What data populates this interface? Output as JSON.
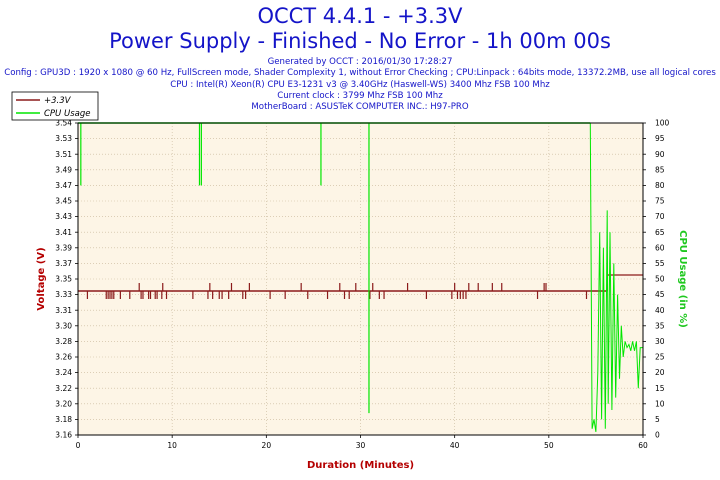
{
  "chart_data": {
    "type": "line",
    "title": "OCCT 4.4.1 - +3.3V",
    "subtitle": "Power Supply - Finished - No Error - 1h 00m 00s",
    "info_lines": [
      "Generated by OCCT : 2016/01/30 17:28:27",
      "Config : GPU3D : 1920 x 1080 @ 60 Hz, FullScreen mode, Shader Complexity 1, without Error Checking ; CPU:Linpack : 64bits mode, 13372.2MB, use all logical cores",
      "CPU : Intel(R) Xeon(R) CPU E3-1231 v3 @ 3.40GHz (Haswell-WS) 3400 Mhz FSB 100 Mhz",
      "Current clock : 3799 Mhz FSB 100 Mhz",
      "MotherBoard : ASUSTeK COMPUTER INC.: H97-PRO"
    ],
    "xlabel": "Duration (Minutes)",
    "ylabel": "Voltage (V)",
    "y2label": "CPU Usage (in %)",
    "xlim": [
      0,
      60
    ],
    "ylim": [
      3.16,
      3.55
    ],
    "y2lim": [
      0,
      100
    ],
    "xticks": [
      "0",
      "10",
      "20",
      "30",
      "40",
      "50",
      "60"
    ],
    "yticks": [
      "3.16",
      "3.18",
      "3.20",
      "3.22",
      "3.24",
      "3.26",
      "3.28",
      "3.30",
      "3.31",
      "3.33",
      "3.35",
      "3.37",
      "3.39",
      "3.41",
      "3.43",
      "3.45",
      "3.47",
      "3.49",
      "3.51",
      "3.53",
      "3.54"
    ],
    "y2ticks": [
      "0",
      "5",
      "10",
      "15",
      "20",
      "25",
      "30",
      "35",
      "40",
      "45",
      "50",
      "55",
      "60",
      "65",
      "70",
      "75",
      "80",
      "85",
      "90",
      "95",
      "100"
    ],
    "grid": true,
    "legend_position": "top-left",
    "background_color": "#fdf5e6",
    "series": [
      {
        "name": "+3.3V",
        "color": "#8b1a1a",
        "axis": "left",
        "baseline": 3.34,
        "end_segment": {
          "x_start": 56.2,
          "value": 3.36
        },
        "spikes": [
          [
            1,
            3.33
          ],
          [
            3,
            3.33
          ],
          [
            3.2,
            3.33
          ],
          [
            3.4,
            3.33
          ],
          [
            3.6,
            3.33
          ],
          [
            3.8,
            3.33
          ],
          [
            4.5,
            3.33
          ],
          [
            5.5,
            3.33
          ],
          [
            6.5,
            3.35
          ],
          [
            6.7,
            3.33
          ],
          [
            6.9,
            3.33
          ],
          [
            7.5,
            3.33
          ],
          [
            7.7,
            3.33
          ],
          [
            8.2,
            3.33
          ],
          [
            8.4,
            3.33
          ],
          [
            8.9,
            3.33
          ],
          [
            9,
            3.35
          ],
          [
            9.4,
            3.33
          ],
          [
            12.2,
            3.33
          ],
          [
            13.8,
            3.33
          ],
          [
            14,
            3.35
          ],
          [
            14.3,
            3.33
          ],
          [
            15,
            3.33
          ],
          [
            15.3,
            3.33
          ],
          [
            16,
            3.33
          ],
          [
            16.3,
            3.35
          ],
          [
            17.5,
            3.33
          ],
          [
            17.8,
            3.33
          ],
          [
            18.2,
            3.35
          ],
          [
            20.4,
            3.33
          ],
          [
            22,
            3.33
          ],
          [
            23.7,
            3.35
          ],
          [
            24.4,
            3.33
          ],
          [
            26.5,
            3.33
          ],
          [
            27.8,
            3.35
          ],
          [
            28.3,
            3.33
          ],
          [
            28.8,
            3.33
          ],
          [
            29.5,
            3.35
          ],
          [
            31,
            3.33
          ],
          [
            31.3,
            3.35
          ],
          [
            32,
            3.33
          ],
          [
            32.5,
            3.33
          ],
          [
            35,
            3.35
          ],
          [
            37,
            3.33
          ],
          [
            39.7,
            3.33
          ],
          [
            40,
            3.35
          ],
          [
            40.3,
            3.33
          ],
          [
            40.6,
            3.33
          ],
          [
            40.9,
            3.33
          ],
          [
            41.2,
            3.33
          ],
          [
            41.5,
            3.35
          ],
          [
            42.5,
            3.35
          ],
          [
            44,
            3.35
          ],
          [
            45,
            3.35
          ],
          [
            48.8,
            3.33
          ],
          [
            49.5,
            3.35
          ],
          [
            49.7,
            3.35
          ],
          [
            54,
            3.33
          ]
        ]
      },
      {
        "name": "CPU Usage",
        "color": "#00e600",
        "axis": "right",
        "baseline": 100,
        "dips": [
          [
            0.3,
            80
          ],
          [
            12.9,
            80
          ],
          [
            13.1,
            80
          ],
          [
            25.8,
            80
          ],
          [
            30.9,
            7
          ]
        ],
        "end_noise": [
          [
            54.4,
            100
          ],
          [
            54.6,
            2
          ],
          [
            54.8,
            5
          ],
          [
            55.0,
            1
          ],
          [
            55.2,
            20
          ],
          [
            55.4,
            65
          ],
          [
            55.6,
            5
          ],
          [
            55.8,
            60
          ],
          [
            56.0,
            2
          ],
          [
            56.2,
            72
          ],
          [
            56.3,
            10
          ],
          [
            56.5,
            65
          ],
          [
            56.7,
            8
          ],
          [
            56.9,
            55
          ],
          [
            57.1,
            12
          ],
          [
            57.3,
            45
          ],
          [
            57.5,
            18
          ],
          [
            57.7,
            35
          ],
          [
            57.9,
            25
          ],
          [
            58.1,
            30
          ],
          [
            58.3,
            28
          ],
          [
            58.5,
            29
          ],
          [
            58.7,
            27
          ],
          [
            58.9,
            30
          ],
          [
            59.1,
            27
          ],
          [
            59.3,
            30
          ],
          [
            59.5,
            15
          ],
          [
            59.7,
            28
          ],
          [
            60,
            28
          ]
        ]
      }
    ]
  }
}
